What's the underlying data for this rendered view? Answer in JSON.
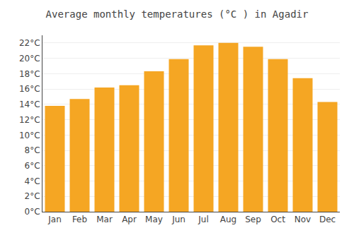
{
  "chart_data": {
    "type": "bar",
    "title": "Average monthly temperatures (°C ) in Agadir",
    "categories": [
      "Jan",
      "Feb",
      "Mar",
      "Apr",
      "May",
      "Jun",
      "Jul",
      "Aug",
      "Sep",
      "Oct",
      "Nov",
      "Dec"
    ],
    "values": [
      13.8,
      14.7,
      16.2,
      16.5,
      18.3,
      19.9,
      21.7,
      22.0,
      21.5,
      19.9,
      17.4,
      14.3
    ],
    "color": "#F5A623",
    "ylim": [
      0,
      23
    ],
    "yticks": [
      {
        "value": 0,
        "label": "0°C"
      },
      {
        "value": 2,
        "label": "2°C"
      },
      {
        "value": 4,
        "label": "4°C"
      },
      {
        "value": 6,
        "label": "6°C"
      },
      {
        "value": 8,
        "label": "8°C"
      },
      {
        "value": 10,
        "label": "10°C"
      },
      {
        "value": 12,
        "label": "12°C"
      },
      {
        "value": 14,
        "label": "14°C"
      },
      {
        "value": 16,
        "label": "16°C"
      },
      {
        "value": 18,
        "label": "18°C"
      },
      {
        "value": 20,
        "label": "20°C"
      },
      {
        "value": 22,
        "label": "22°C"
      }
    ],
    "grid": true
  }
}
